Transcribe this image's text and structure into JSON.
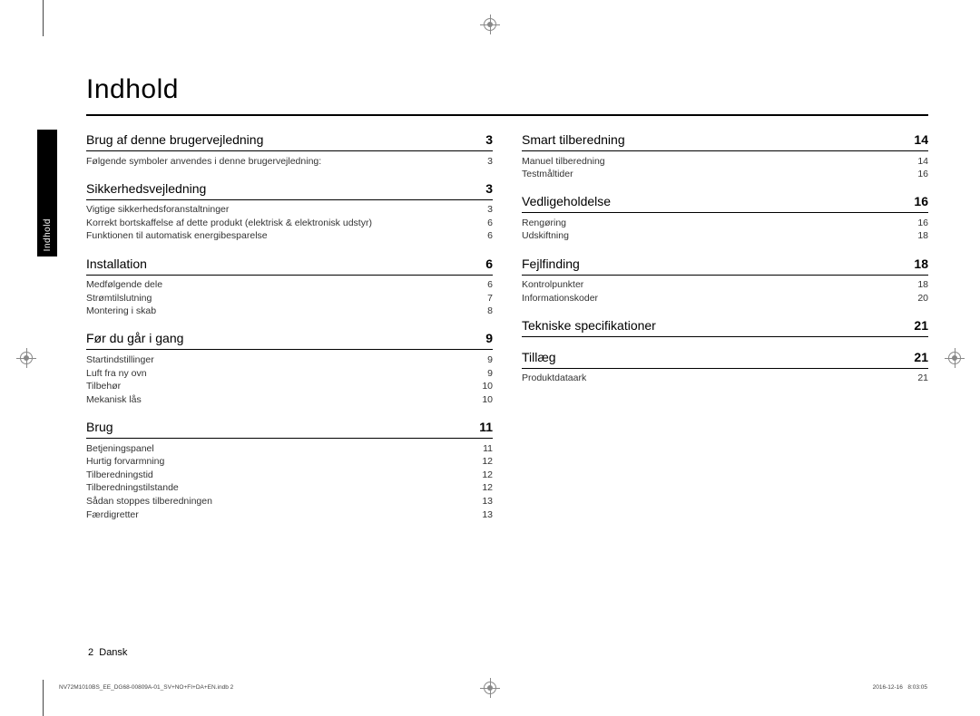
{
  "title": "Indhold",
  "side_tab": "Indhold",
  "page_number": "2",
  "language": "Dansk",
  "file_info": "NV72M1010BS_EE_DG68-00809A-01_SV+NO+FI+DA+EN.indb   2",
  "timestamp_date": "2016-12-16",
  "timestamp_time": "8:03:05",
  "left": [
    {
      "heading": "Brug af denne brugervejledning",
      "page": "3",
      "items": [
        {
          "label": "Følgende symboler anvendes i denne brugervejledning:",
          "page": "3"
        }
      ]
    },
    {
      "heading": "Sikkerhedsvejledning",
      "page": "3",
      "items": [
        {
          "label": "Vigtige sikkerhedsforanstaltninger",
          "page": "3"
        },
        {
          "label": "Korrekt bortskaffelse af dette produkt (elektrisk & elektronisk udstyr)",
          "page": "6"
        },
        {
          "label": "Funktionen til automatisk energibesparelse",
          "page": "6"
        }
      ]
    },
    {
      "heading": "Installation",
      "page": "6",
      "items": [
        {
          "label": "Medfølgende dele",
          "page": "6"
        },
        {
          "label": "Strømtilslutning",
          "page": "7"
        },
        {
          "label": "Montering i skab",
          "page": "8"
        }
      ]
    },
    {
      "heading": "Før du går i gang",
      "page": "9",
      "items": [
        {
          "label": "Startindstillinger",
          "page": "9"
        },
        {
          "label": "Luft fra ny ovn",
          "page": "9"
        },
        {
          "label": "Tilbehør",
          "page": "10"
        },
        {
          "label": "Mekanisk lås",
          "page": "10"
        }
      ]
    },
    {
      "heading": "Brug",
      "page": "11",
      "items": [
        {
          "label": "Betjeningspanel",
          "page": "11"
        },
        {
          "label": "Hurtig forvarmning",
          "page": "12"
        },
        {
          "label": "Tilberedningstid",
          "page": "12"
        },
        {
          "label": "Tilberedningstilstande",
          "page": "12"
        },
        {
          "label": "Sådan stoppes tilberedningen",
          "page": "13"
        },
        {
          "label": "Færdigretter",
          "page": "13"
        }
      ]
    }
  ],
  "right": [
    {
      "heading": "Smart tilberedning",
      "page": "14",
      "items": [
        {
          "label": "Manuel tilberedning",
          "page": "14"
        },
        {
          "label": "Testmåltider",
          "page": "16"
        }
      ]
    },
    {
      "heading": "Vedligeholdelse",
      "page": "16",
      "items": [
        {
          "label": "Rengøring",
          "page": "16"
        },
        {
          "label": "Udskiftning",
          "page": "18"
        }
      ]
    },
    {
      "heading": "Fejlfinding",
      "page": "18",
      "items": [
        {
          "label": "Kontrolpunkter",
          "page": "18"
        },
        {
          "label": "Informationskoder",
          "page": "20"
        }
      ]
    },
    {
      "heading": "Tekniske specifikationer",
      "page": "21",
      "items": []
    },
    {
      "heading": "Tillæg",
      "page": "21",
      "items": [
        {
          "label": "Produktdataark",
          "page": "21"
        }
      ]
    }
  ]
}
